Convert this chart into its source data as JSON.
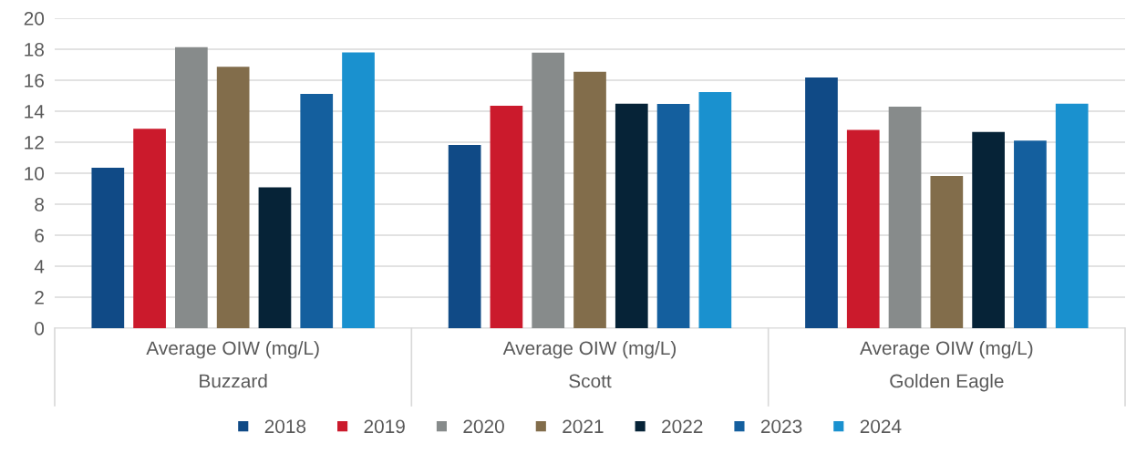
{
  "chart_data": {
    "type": "bar",
    "categories": [
      "Buzzard",
      "Scott",
      "Golden Eagle"
    ],
    "annotations": [
      "Average OIW (mg/L)",
      "Average OIW (mg/L)",
      "Average OIW (mg/L)"
    ],
    "series": [
      {
        "name": "2018",
        "color": "#104a86",
        "values": [
          10.35,
          11.83,
          16.18
        ]
      },
      {
        "name": "2019",
        "color": "#cb1a2c",
        "values": [
          12.87,
          14.35,
          12.8
        ]
      },
      {
        "name": "2020",
        "color": "#878b8b",
        "values": [
          18.13,
          17.78,
          14.29
        ]
      },
      {
        "name": "2021",
        "color": "#826d4b",
        "values": [
          16.87,
          16.54,
          9.82
        ]
      },
      {
        "name": "2022",
        "color": "#062337",
        "values": [
          9.09,
          14.49,
          12.66
        ]
      },
      {
        "name": "2023",
        "color": "#145f9e",
        "values": [
          15.12,
          14.47,
          12.11
        ]
      },
      {
        "name": "2024",
        "color": "#1a91cf",
        "values": [
          17.8,
          15.24,
          14.49
        ]
      }
    ],
    "ylim": [
      0,
      20
    ],
    "yticks": [
      0,
      2,
      4,
      6,
      8,
      10,
      12,
      14,
      16,
      18,
      20
    ],
    "grid": "y",
    "legend": "bottom"
  }
}
